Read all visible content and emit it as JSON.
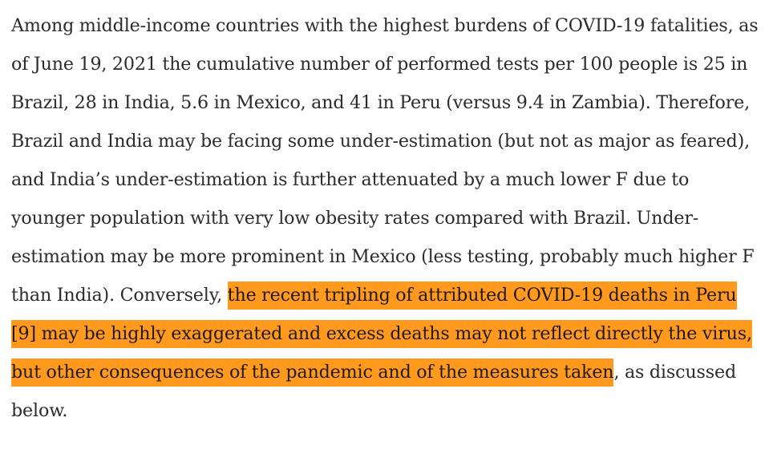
{
  "article": {
    "paragraph": {
      "before_highlight": "Among middle-income countries with the highest burdens of COVID-19 fatalities, as of June 19, 2021 the cumulative number of performed tests per 100 people is 25 in Brazil, 28 in India, 5.6 in Mexico, and 41 in Peru (versus 9.4 in Zambia). Therefore, Brazil and India may be facing some under-estimation (but not as major as feared), and India’s under-estimation is further attenuated by a much lower F due to younger population with very low obesity rates compared with Brazil. Under-estimation may be more prominent in Mexico (less testing, probably much higher F than India). Conversely, ",
      "highlighted": "the recent tripling of attributed COVID-19 deaths in Peru [9] may be highly exaggerated and excess deaths may not reflect directly the virus, but other consequences of the pandemic and of the measures taken",
      "after_highlight": ", as discussed below."
    },
    "highlight_color": "#ff9a1f",
    "text_color": "#2b2b2b"
  }
}
